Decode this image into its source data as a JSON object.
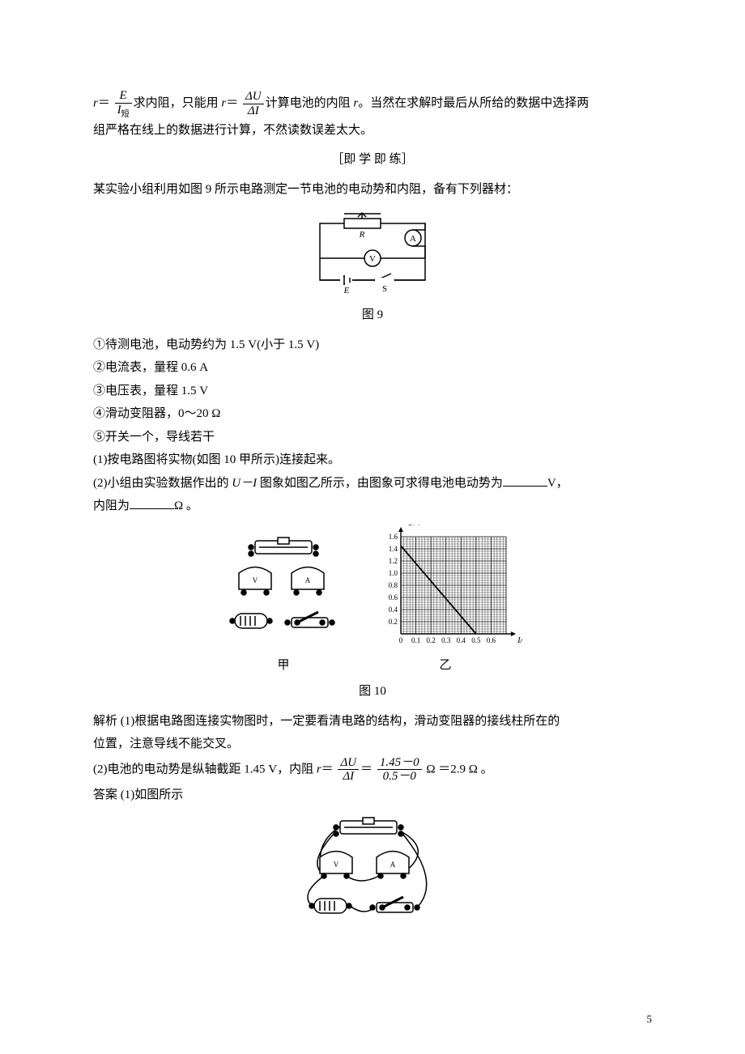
{
  "line1_pre": "＝",
  "line1_frac1": {
    "num": "E",
    "den": "I短"
  },
  "line1_mid1": "求内阻，只能用 ",
  "line1_r2": "r",
  "line1_eq2": "＝",
  "line1_frac2": {
    "num": "ΔU",
    "den": "ΔI"
  },
  "line1_mid2": "计算电池的内阻 ",
  "line1_rvar": "r",
  "line1_post": "。当然在求解时最后从所给的数据中选择两",
  "line2": "组严格在线上的数据进行计算，不然读数误差太大。",
  "section_heading": "［即 学 即 练］",
  "intro": "某实验小组利用如图 9 所示电路测定一节电池的电动势和内阻，备有下列器材：",
  "fig9_labels": {
    "R": "R",
    "A": "A",
    "V": "V",
    "E": "E",
    "S": "S"
  },
  "fig9_caption": "图 9",
  "items": [
    "①待测电池，电动势约为 1.5 V(小于 1.5 V)",
    "②电流表，量程 0.6 A",
    "③电压表，量程 1.5 V",
    "④滑动变阻器，0～20 Ω",
    "⑤开关一个，导线若干"
  ],
  "q1": "(1)按电路图将实物(如图 10 甲所示)连接起来。",
  "q2_a": "(2)小组由实验数据作出的 ",
  "q2_UI": "U－I",
  "q2_b": " 图象如图乙所示，由图象可求得电池电动势为",
  "q2_unitV": "V，",
  "q2_c": "内阻为",
  "q2_unitO": "Ω 。",
  "fig10": {
    "sub_left": "甲",
    "sub_right": "乙",
    "caption": "图 10",
    "ylabel": "U/V",
    "xlabel": "I/A",
    "yticks": [
      "0.2",
      "0.4",
      "0.6",
      "0.8",
      "1.0",
      "1.2",
      "1.4",
      "1.6"
    ],
    "xticks": [
      "0",
      "0.1",
      "0.2",
      "0.3",
      "0.4",
      "0.5",
      "0.6"
    ],
    "line": {
      "x1": 0,
      "y1": 1.45,
      "x2": 0.5,
      "y2": 0
    },
    "grid_xmax": 0.7,
    "grid_ymax": 1.6,
    "minor": 5
  },
  "sol_label": "解析",
  "sol1_a": "  (1)根据电路图连接实物图时，一定要看清电路的结构，滑动变阻器的接线柱所在的",
  "sol1_b": "位置，注意导线不能交叉。",
  "sol2_a": "(2)电池的电动势是纵轴截距 1.45 V，内阻 ",
  "sol2_r": "r",
  "sol2_eq": "＝",
  "sol2_frac1": {
    "num": "ΔU",
    "den": "ΔI"
  },
  "sol2_eq2": "＝",
  "sol2_frac2": {
    "num": "1.45－0",
    "den": "0.5－0"
  },
  "sol2_b": " Ω ＝2.9 Ω 。",
  "ans_label": "答案",
  "ans_text": "  (1)如图所示",
  "page_number": "5",
  "colors": {
    "text": "#000000",
    "bg": "#ffffff",
    "stroke": "#000000"
  },
  "fonts": {
    "body_pt": 15,
    "caption_pt": 15
  }
}
